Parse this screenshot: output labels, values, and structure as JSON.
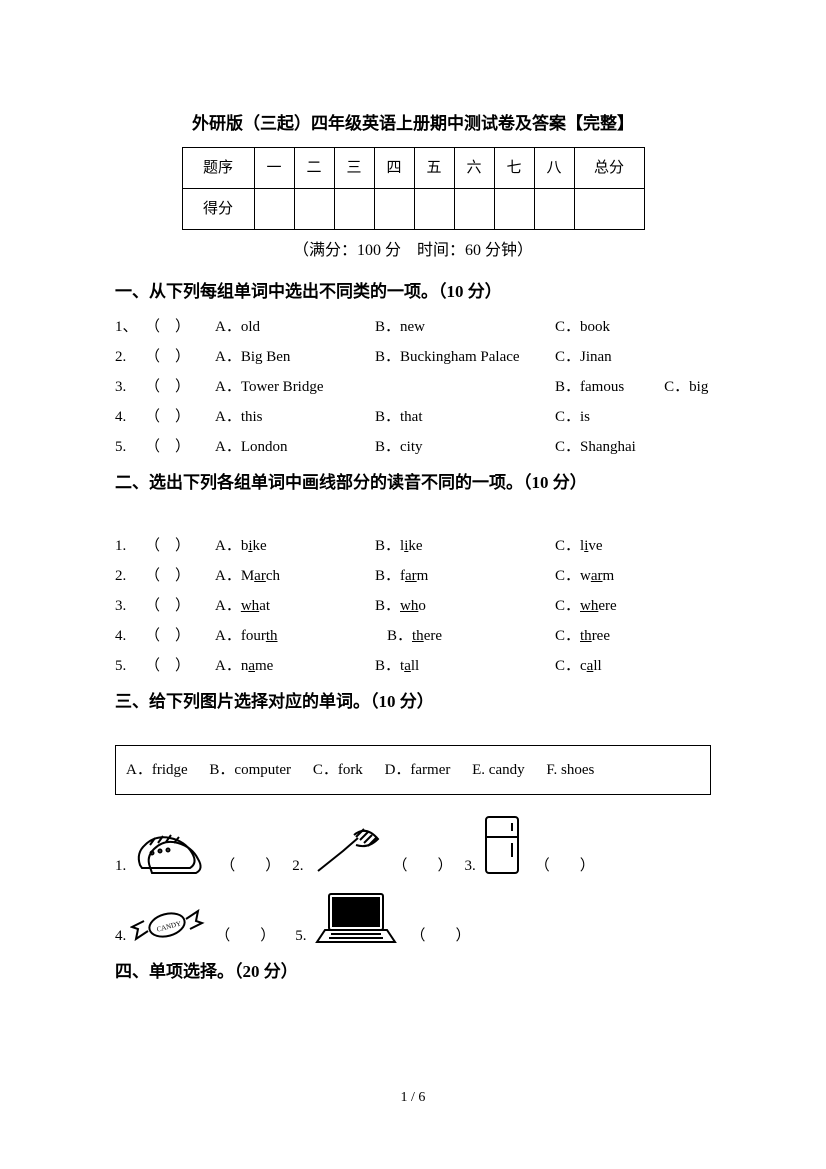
{
  "title": "外研版（三起）四年级英语上册期中测试卷及答案【完整】",
  "table": {
    "row1_label": "题序",
    "row2_label": "得分",
    "cols": [
      "一",
      "二",
      "三",
      "四",
      "五",
      "六",
      "七",
      "八"
    ],
    "total_label": "总分"
  },
  "info": "（满分：100 分 时间：60 分钟）",
  "section1": {
    "heading": "一、从下列每组单词中选出不同类的一项。（10 分）",
    "items": [
      {
        "num": "1、",
        "blank": "（ ）",
        "a": "A．old",
        "b": "B．new",
        "c": "C．book"
      },
      {
        "num": "2.",
        "blank": "（ ）",
        "a": "A．Big Ben",
        "b": "B．Buckingham Palace",
        "c": "C．Jinan"
      },
      {
        "num": "3.",
        "blank": "（ ）",
        "a": "A．Tower Bridge",
        "b": "",
        "c": "B．famous",
        "d": "C．big"
      },
      {
        "num": "4.",
        "blank": "（ ）",
        "a": "A．this",
        "b": "B．that",
        "c": "C．is"
      },
      {
        "num": "5.",
        "blank": "（ ）",
        "a": "A．London",
        "b": "B．city",
        "c": "C．Shanghai"
      }
    ]
  },
  "section2": {
    "heading": "二、选出下列各组单词中画线部分的读音不同的一项。（10 分）",
    "items": [
      {
        "num": "1.",
        "blank": "（ ）",
        "a_pre": "A．b",
        "a_u": "i",
        "a_post": "ke",
        "b_pre": "B．l",
        "b_u": "i",
        "b_post": "ke",
        "c_pre": "C．l",
        "c_u": "i",
        "c_post": "ve"
      },
      {
        "num": "2.",
        "blank": "（ ）",
        "a_pre": "A．M",
        "a_u": "ar",
        "a_post": "ch",
        "b_pre": "B．f",
        "b_u": "ar",
        "b_post": "m",
        "c_pre": "C．w",
        "c_u": "ar",
        "c_post": "m"
      },
      {
        "num": "3.",
        "blank": "（ ）",
        "a_pre": "A．",
        "a_u": "wh",
        "a_post": "at",
        "b_pre": "B．",
        "b_u": "wh",
        "b_post": "o",
        "c_pre": "C．",
        "c_u": "wh",
        "c_post": "ere"
      },
      {
        "num": "4.",
        "blank": "（ ）",
        "a_pre": "A．four",
        "a_u": "th",
        "a_post": "",
        "b_pre": "B．",
        "b_u": "th",
        "b_post": "ere",
        "c_pre": "C．",
        "c_u": "th",
        "c_post": "ree"
      },
      {
        "num": "5.",
        "blank": "（ ）",
        "a_pre": "A．n",
        "a_u": "a",
        "a_post": "me",
        "b_pre": "B．t",
        "b_u": "a",
        "b_post": "ll",
        "c_pre": "C．c",
        "c_u": "a",
        "c_post": "ll"
      }
    ]
  },
  "section3": {
    "heading": "三、给下列图片选择对应的单词。（10 分）",
    "box": {
      "a": "A．fridge",
      "b": "B．computer",
      "c": "C．fork",
      "d": "D．farmer",
      "e": "E. candy",
      "f": "F. shoes"
    },
    "items": [
      {
        "num": "1.",
        "blank": "（  ）"
      },
      {
        "num": "2.",
        "blank": "（  ）"
      },
      {
        "num": "3.",
        "blank": "（  ）"
      },
      {
        "num": "4.",
        "blank": "（  ）"
      },
      {
        "num": "5.",
        "blank": "（  ）"
      }
    ]
  },
  "section4_heading": "四、单项选择。（20 分）",
  "page_num": "1 / 6"
}
